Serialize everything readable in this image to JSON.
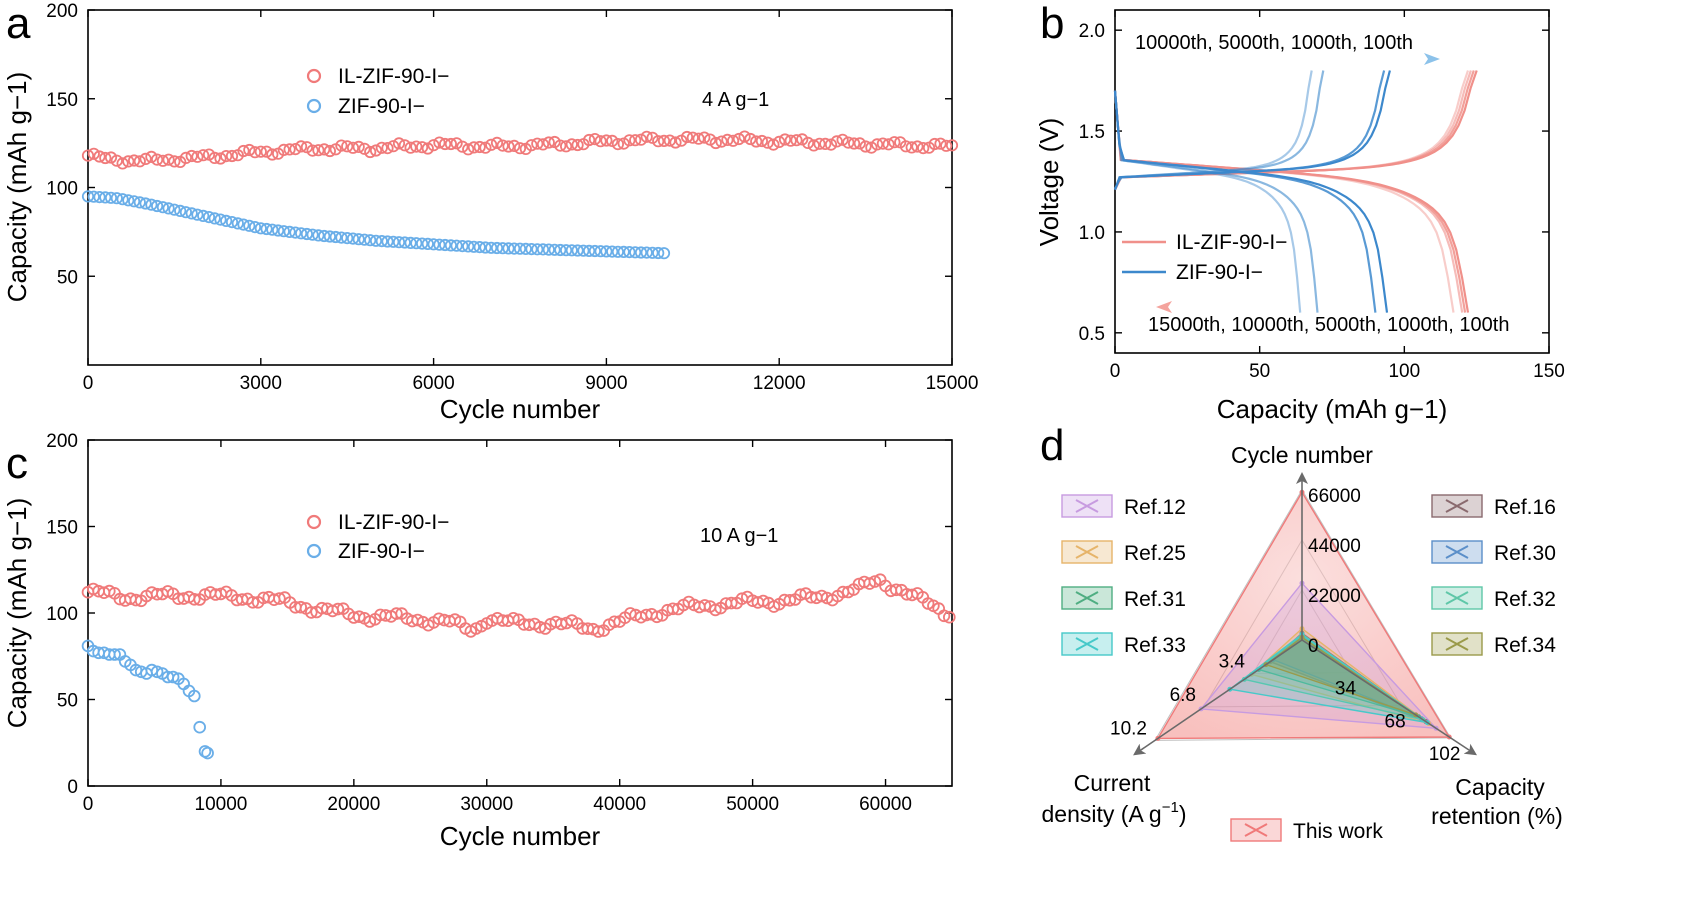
{
  "figure": {
    "panel_labels": [
      "a",
      "b",
      "c",
      "d"
    ]
  },
  "colors": {
    "il_zif": "#f07a7a",
    "zif": "#6aaee8",
    "il_zif_line_b": "#f0908a",
    "zif_line_b": "#3c88cc",
    "axis": "#000000"
  },
  "chart_data": [
    {
      "panel": "a",
      "type": "scatter",
      "xlabel": "Cycle number",
      "ylabel": "Capacity (mAh g−1)",
      "xlim": [
        0,
        15000
      ],
      "ylim": [
        0,
        200
      ],
      "xticks": [
        0,
        3000,
        6000,
        9000,
        12000,
        15000
      ],
      "yticks": [
        50,
        100,
        150,
        200
      ],
      "annotation": "4 A g−1",
      "legend_position": "top-left",
      "series": [
        {
          "name": "IL-ZIF-90-I−",
          "color": "#f07a7a",
          "x_start": 0,
          "x_step": 100,
          "anchors": [
            [
              0,
              118
            ],
            [
              300,
              116
            ],
            [
              1000,
              115
            ],
            [
              2000,
              117
            ],
            [
              3000,
              120
            ],
            [
              4000,
              122
            ],
            [
              5000,
              122
            ],
            [
              6000,
              124
            ],
            [
              7000,
              123
            ],
            [
              8000,
              124
            ],
            [
              9000,
              126
            ],
            [
              10000,
              127
            ],
            [
              11000,
              127
            ],
            [
              12000,
              126
            ],
            [
              13000,
              125
            ],
            [
              14000,
              124
            ],
            [
              15000,
              123
            ]
          ]
        },
        {
          "name": "ZIF-90-I−",
          "color": "#6aaee8",
          "x_start": 0,
          "x_step": 100,
          "anchors": [
            [
              0,
              95
            ],
            [
              500,
              94
            ],
            [
              1000,
              91
            ],
            [
              2000,
              84
            ],
            [
              3000,
              77
            ],
            [
              4000,
              73
            ],
            [
              5000,
              70
            ],
            [
              6000,
              68
            ],
            [
              7000,
              66
            ],
            [
              8000,
              65
            ],
            [
              9000,
              64
            ],
            [
              10000,
              63
            ]
          ]
        }
      ]
    },
    {
      "panel": "b",
      "type": "line",
      "xlabel": "Capacity (mAh g−1)",
      "ylabel": "Voltage (V)",
      "xlim": [
        0,
        150
      ],
      "ylim": [
        0.4,
        2.1
      ],
      "xticks": [
        0,
        50,
        100,
        150
      ],
      "yticks": [
        0.5,
        1.0,
        1.5,
        2.0
      ],
      "arrow_top_label": "10000th, 5000th, 1000th, 100th",
      "arrow_bottom_label": "15000th, 10000th, 5000th, 1000th, 100th",
      "legend_position": "bottom-left",
      "series": [
        {
          "name": "IL-ZIF-90-I−",
          "color": "#f0908a",
          "curves": [
            {
              "charge_end": 125,
              "discharge_end": 122
            },
            {
              "charge_end": 124,
              "discharge_end": 121
            },
            {
              "charge_end": 123,
              "discharge_end": 120
            },
            {
              "charge_end": 122,
              "discharge_end": 117
            }
          ]
        },
        {
          "name": "ZIF-90-I−",
          "color": "#3c88cc",
          "curves": [
            {
              "charge_end": 95,
              "discharge_end": 94
            },
            {
              "charge_end": 93,
              "discharge_end": 90
            },
            {
              "charge_end": 72,
              "discharge_end": 70
            },
            {
              "charge_end": 68,
              "discharge_end": 64
            }
          ]
        }
      ]
    },
    {
      "panel": "c",
      "type": "scatter",
      "xlabel": "Cycle number",
      "ylabel": "Capacity (mAh g−1)",
      "xlim": [
        0,
        65000
      ],
      "ylim": [
        0,
        200
      ],
      "xticks": [
        0,
        10000,
        20000,
        30000,
        40000,
        50000,
        60000
      ],
      "yticks": [
        0,
        50,
        100,
        150,
        200
      ],
      "annotation": "10 A g−1",
      "legend_position": "top-left",
      "series": [
        {
          "name": "IL-ZIF-90-I−",
          "color": "#f07a7a",
          "x_start": 0,
          "x_step": 400,
          "anchors": [
            [
              0,
              112
            ],
            [
              3000,
              109
            ],
            [
              6000,
              110
            ],
            [
              9000,
              110
            ],
            [
              12000,
              109
            ],
            [
              15000,
              106
            ],
            [
              18000,
              101
            ],
            [
              21000,
              98
            ],
            [
              24000,
              97
            ],
            [
              27000,
              95
            ],
            [
              29000,
              90
            ],
            [
              30000,
              97
            ],
            [
              32000,
              94
            ],
            [
              35000,
              94
            ],
            [
              38000,
              91
            ],
            [
              40000,
              95
            ],
            [
              43000,
              101
            ],
            [
              46000,
              104
            ],
            [
              49000,
              106
            ],
            [
              52000,
              107
            ],
            [
              55000,
              109
            ],
            [
              58000,
              114
            ],
            [
              59500,
              119
            ],
            [
              61000,
              114
            ],
            [
              62000,
              110
            ],
            [
              63500,
              104
            ],
            [
              64500,
              100
            ],
            [
              65000,
              101
            ]
          ]
        },
        {
          "name": "ZIF-90-I−",
          "color": "#6aaee8",
          "points": [
            [
              0,
              81
            ],
            [
              400,
              78
            ],
            [
              800,
              77
            ],
            [
              1200,
              77
            ],
            [
              1600,
              76
            ],
            [
              2000,
              76
            ],
            [
              2400,
              76
            ],
            [
              2800,
              72
            ],
            [
              3200,
              70
            ],
            [
              3600,
              67
            ],
            [
              4000,
              66
            ],
            [
              4400,
              65
            ],
            [
              4800,
              67
            ],
            [
              5200,
              66
            ],
            [
              5600,
              65
            ],
            [
              6000,
              63
            ],
            [
              6400,
              63
            ],
            [
              6800,
              62
            ],
            [
              7200,
              59
            ],
            [
              7600,
              55
            ],
            [
              8000,
              52
            ],
            [
              8400,
              34
            ],
            [
              8800,
              20
            ],
            [
              9000,
              19
            ]
          ]
        }
      ]
    },
    {
      "panel": "d",
      "type": "radar",
      "axes": [
        {
          "name": "Cycle number",
          "ticks": [
            "0",
            "22000",
            "44000",
            "66000"
          ]
        },
        {
          "name": "Capacity retention (%)",
          "ticks": [
            "34",
            "68",
            "102"
          ]
        },
        {
          "name": "Current density (A g−1)",
          "ticks": [
            "3.4",
            "6.8",
            "10.2"
          ]
        }
      ],
      "axis_max": [
        66000,
        102,
        10.2
      ],
      "legend_position": "left, right and bottom",
      "series": [
        {
          "name": "This work",
          "color": "#f07a7a",
          "values": [
            65000,
            101,
            10
          ]
        },
        {
          "name": "Ref.12",
          "color": "#c79be0",
          "values": [
            25000,
            92,
            7
          ]
        },
        {
          "name": "Ref.16",
          "color": "#8a6a6e",
          "values": [
            3000,
            85,
            2.2
          ]
        },
        {
          "name": "Ref.25",
          "color": "#e6b46a",
          "values": [
            5000,
            87,
            3.5
          ]
        },
        {
          "name": "Ref.30",
          "color": "#5b8fc9",
          "values": [
            1500,
            82,
            2
          ]
        },
        {
          "name": "Ref.31",
          "color": "#4fae82",
          "values": [
            1000,
            80,
            3
          ]
        },
        {
          "name": "Ref.32",
          "color": "#5fc7a8",
          "values": [
            2000,
            83,
            4
          ]
        },
        {
          "name": "Ref.33",
          "color": "#46c9c9",
          "values": [
            2500,
            86,
            5
          ]
        },
        {
          "name": "Ref.34",
          "color": "#9a9a4a",
          "values": [
            1200,
            78,
            2.5
          ]
        }
      ]
    }
  ]
}
